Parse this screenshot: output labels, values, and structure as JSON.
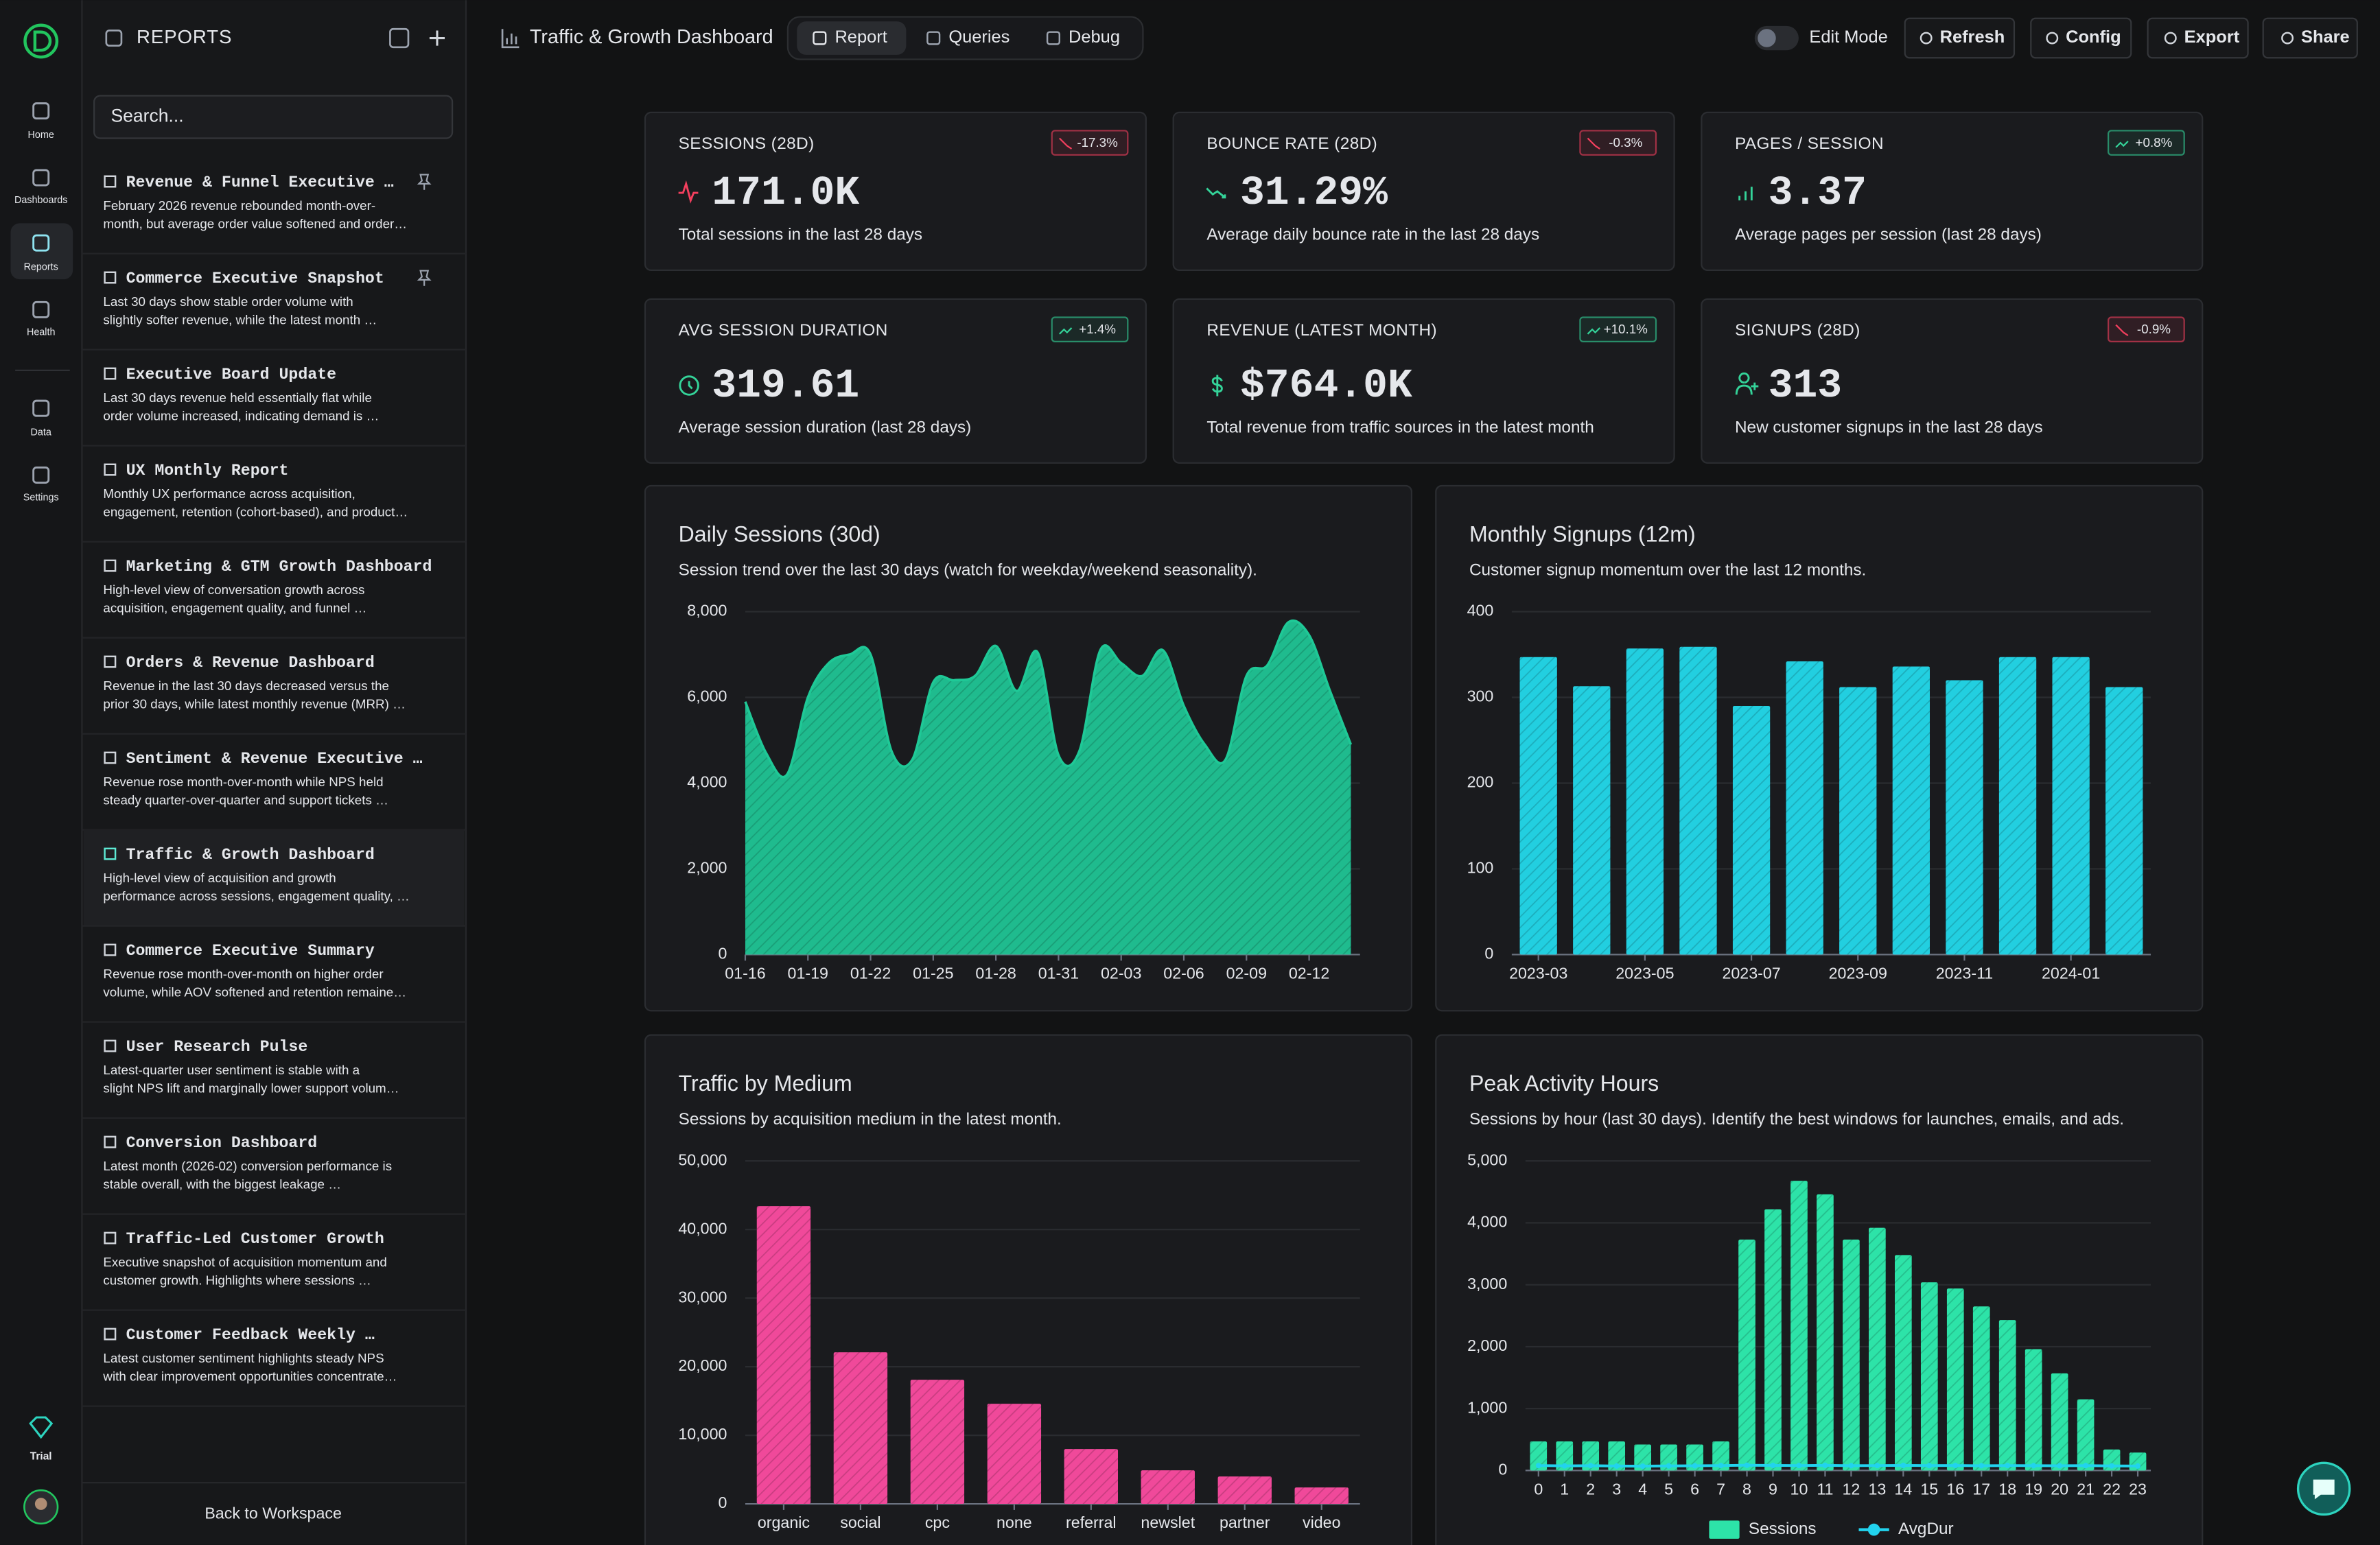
{
  "nav": {
    "items": [
      "Home",
      "Dashboards",
      "Reports",
      "Health",
      "Data",
      "Settings"
    ],
    "active": 2,
    "trial": "Trial"
  },
  "sidebar": {
    "title": "REPORTS",
    "search_placeholder": "Search...",
    "active": 7,
    "reports": [
      {
        "title": "Revenue & Funnel Executive …",
        "desc": [
          "February 2026 revenue rebounded month-over-",
          "month, but average order value softened and order…"
        ],
        "pinned": true
      },
      {
        "title": "Commerce Executive Snapshot",
        "desc": [
          "Last 30 days show stable order volume with",
          "slightly softer revenue, while the latest month …"
        ],
        "pinned": true
      },
      {
        "title": "Executive Board Update",
        "desc": [
          "Last 30 days revenue held essentially flat while",
          "order volume increased, indicating demand is …"
        ],
        "pinned": false
      },
      {
        "title": "UX Monthly Report",
        "desc": [
          "Monthly UX performance across acquisition,",
          "engagement, retention (cohort-based), and product…"
        ],
        "pinned": false
      },
      {
        "title": "Marketing & GTM Growth Dashboard",
        "desc": [
          "High-level view of conversation growth across",
          "acquisition, engagement quality, and funnel …"
        ],
        "pinned": false
      },
      {
        "title": "Orders & Revenue Dashboard",
        "desc": [
          "Revenue in the last 30 days decreased versus the",
          "prior 30 days, while latest monthly revenue (MRR) …"
        ],
        "pinned": false
      },
      {
        "title": "Sentiment & Revenue Executive …",
        "desc": [
          "Revenue rose month-over-month while NPS held",
          "steady quarter-over-quarter and support tickets …"
        ],
        "pinned": false
      },
      {
        "title": "Traffic & Growth Dashboard",
        "desc": [
          "High-level view of acquisition and growth",
          "performance across sessions, engagement quality, …"
        ],
        "pinned": false
      },
      {
        "title": "Commerce Executive Summary",
        "desc": [
          "Revenue rose month-over-month on higher order",
          "volume, while AOV softened and retention remaine…"
        ],
        "pinned": false
      },
      {
        "title": "User Research Pulse",
        "desc": [
          "Latest-quarter user sentiment is stable with a",
          "slight NPS lift and marginally lower support volum…"
        ],
        "pinned": false
      },
      {
        "title": "Conversion Dashboard",
        "desc": [
          "Latest month (2026-02) conversion performance is",
          "stable overall, with the biggest leakage …"
        ],
        "pinned": false
      },
      {
        "title": "Traffic-Led Customer Growth",
        "desc": [
          "Executive snapshot of acquisition momentum and",
          "customer growth. Highlights where sessions …"
        ],
        "pinned": false
      },
      {
        "title": "Customer Feedback Weekly …",
        "desc": [
          "Latest customer sentiment highlights steady NPS",
          "with clear improvement opportunities concentrate…"
        ],
        "pinned": false
      }
    ],
    "back": "Back to Workspace"
  },
  "header": {
    "title": "Traffic & Growth Dashboard",
    "tabs": [
      "Report",
      "Queries",
      "Debug"
    ],
    "active_tab": 0,
    "edit_mode": "Edit Mode",
    "buttons": [
      "Refresh",
      "Config",
      "Export",
      "Share"
    ]
  },
  "kpis": [
    {
      "label": "SESSIONS (28D)",
      "value": "171.0K",
      "delta": "-17.3%",
      "desc": "Total sessions in the last 28 days"
    },
    {
      "label": "BOUNCE RATE (28D)",
      "value": "31.29%",
      "delta": "-0.3%",
      "desc": "Average daily bounce rate in the last 28 days"
    },
    {
      "label": "PAGES / SESSION",
      "value": "3.37",
      "delta": "+0.8%",
      "desc": "Average pages per session (last 28 days)"
    },
    {
      "label": "AVG SESSION DURATION",
      "value": "319.61",
      "delta": "+1.4%",
      "desc": "Average session duration (last 28 days)"
    },
    {
      "label": "REVENUE (LATEST MONTH)",
      "value": "$764.0K",
      "delta": "+10.1%",
      "desc": "Total revenue from traffic sources in the latest month"
    },
    {
      "label": "SIGNUPS (28D)",
      "value": "313",
      "delta": "-0.9%",
      "desc": "New customer signups in the last 28 days"
    }
  ],
  "chart_data": [
    {
      "type": "area",
      "title": "Daily Sessions (30d)",
      "subtitle": "Session trend over the last 30 days (watch for weekday/weekend seasonality).",
      "categories": [
        "01-16",
        null,
        null,
        "01-19",
        null,
        null,
        "01-22",
        null,
        null,
        "01-25",
        null,
        null,
        "01-28",
        null,
        null,
        "01-31",
        null,
        null,
        "02-03",
        null,
        null,
        "02-06",
        null,
        null,
        "02-09",
        null,
        null,
        "02-12",
        null,
        null
      ],
      "values": [
        5900,
        4700,
        4200,
        6000,
        6800,
        7000,
        7000,
        4750,
        4550,
        6350,
        6400,
        6500,
        7200,
        6150,
        7050,
        4650,
        4750,
        7100,
        6800,
        6500,
        7100,
        5800,
        4900,
        4550,
        6500,
        6750,
        7750,
        7450,
        6150,
        4900
      ],
      "color": "#1fc997",
      "ylim": [
        0,
        8000
      ],
      "yticks": [
        0,
        {
          "value": 2000,
          "label": "2,000"
        },
        {
          "value": 4000,
          "label": "4,000"
        },
        {
          "value": 6000,
          "label": "6,000"
        },
        {
          "value": 8000,
          "label": "8,000"
        }
      ],
      "grid": true
    },
    {
      "type": "bar",
      "title": "Monthly Signups (12m)",
      "subtitle": "Customer signup momentum over the last 12 months.",
      "categories": [
        "2023-03",
        null,
        "2023-05",
        null,
        "2023-07",
        null,
        "2023-09",
        null,
        "2023-11",
        null,
        "2024-01",
        null
      ],
      "values": [
        347,
        313,
        357,
        359,
        290,
        342,
        312,
        336,
        320,
        347,
        347,
        312
      ],
      "color": "#22cfe0",
      "ylim": [
        0,
        400
      ],
      "yticks": [
        0,
        100,
        200,
        300,
        400
      ],
      "grid": true
    },
    {
      "type": "bar",
      "title": "Traffic by Medium",
      "subtitle": "Sessions by acquisition medium in the latest month.",
      "categories": [
        "organic",
        "social",
        "cpc",
        "none",
        "referral",
        "newslet",
        "partner",
        "video"
      ],
      "values": [
        43400,
        22100,
        18100,
        14600,
        8000,
        4900,
        4000,
        2400
      ],
      "color": "#f0499a",
      "ylim": [
        0,
        50000
      ],
      "yticks": [
        0,
        {
          "value": 10000,
          "label": "10,000"
        },
        {
          "value": 20000,
          "label": "20,000"
        },
        {
          "value": 30000,
          "label": "30,000"
        },
        {
          "value": 40000,
          "label": "40,000"
        },
        {
          "value": 50000,
          "label": "50,000"
        }
      ],
      "grid": true
    },
    {
      "type": "combo",
      "title": "Peak Activity Hours",
      "subtitle": "Sessions by hour (last 30 days). Identify the best windows for launches, emails, and ads.",
      "categories": [
        "0",
        "1",
        "2",
        "3",
        "4",
        "5",
        "6",
        "7",
        "8",
        "9",
        "10",
        "11",
        "12",
        "13",
        "14",
        "15",
        "16",
        "17",
        "18",
        "19",
        "20",
        "21",
        "22",
        "23"
      ],
      "series": [
        {
          "name": "Sessions",
          "type": "bar",
          "color": "#2de3a8",
          "values": [
            470,
            470,
            470,
            470,
            420,
            420,
            420,
            470,
            3730,
            4220,
            4680,
            4460,
            3730,
            3920,
            3480,
            3040,
            2940,
            2650,
            2430,
            1960,
            1570,
            1150,
            340,
            290
          ]
        },
        {
          "name": "AvgDur",
          "type": "line",
          "color": "#22d3ee",
          "values": [
            80,
            75,
            78,
            72,
            70,
            74,
            76,
            80,
            85,
            82,
            80,
            83,
            78,
            80,
            82,
            79,
            81,
            77,
            80,
            78,
            76,
            79,
            74,
            72
          ]
        }
      ],
      "ylim": [
        0,
        5000
      ],
      "yticks": [
        0,
        {
          "value": 1000,
          "label": "1,000"
        },
        {
          "value": 2000,
          "label": "2,000"
        },
        {
          "value": 3000,
          "label": "3,000"
        },
        {
          "value": 4000,
          "label": "4,000"
        },
        {
          "value": 5000,
          "label": "5,000"
        }
      ],
      "grid": true,
      "legend": "bottom"
    }
  ]
}
